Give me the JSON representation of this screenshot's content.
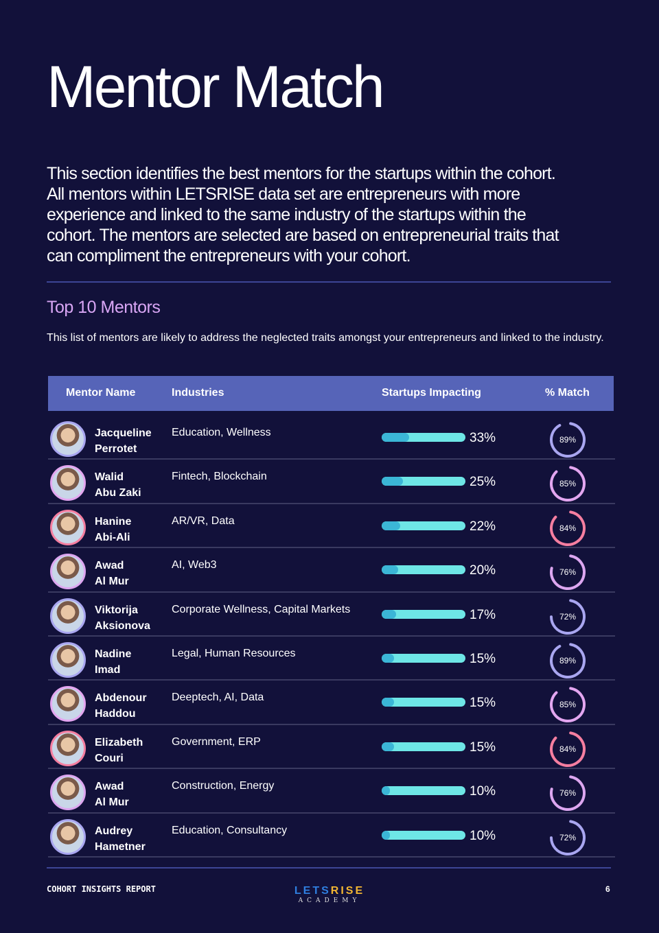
{
  "title": "Mentor Match",
  "intro": "This section identifies the best mentors for the startups within the cohort. All mentors within LETSRISE data set are entrepreneurs with more experience and linked to the same industry of the startups within the cohort. The mentors are selected are based on entrepreneurial traits that can compliment the entrepreneurs with your cohort.",
  "section": {
    "title": "Top 10 Mentors",
    "description": "This list of mentors are likely to address the neglected traits amongst your entrepreneurs and linked to the industry."
  },
  "table": {
    "headers": [
      "Mentor Name",
      "Industries",
      "Startups Impacting",
      "% Match"
    ],
    "rows": [
      {
        "first": "Jacqueline",
        "last": "Perrotet",
        "industries": "Education, Wellness",
        "impact": 33,
        "impact_label": "33%",
        "match": 89,
        "match_label": "89%",
        "ring_color": "#a9a6f0",
        "avatar_border": "#a9a6f0"
      },
      {
        "first": "Walid",
        "last": "Abu Zaki",
        "industries": "Fintech, Blockchain",
        "impact": 25,
        "impact_label": "25%",
        "match": 85,
        "match_label": "85%",
        "ring_color": "#e3a6f0",
        "avatar_border": "#e3a6f0"
      },
      {
        "first": "Hanine",
        "last": "Abi-Ali",
        "industries": "AR/VR, Data",
        "impact": 22,
        "impact_label": "22%",
        "match": 84,
        "match_label": "84%",
        "ring_color": "#f57ea0",
        "avatar_border": "#f57ea0"
      },
      {
        "first": "Awad",
        "last": "Al Mur",
        "industries": "AI, Web3",
        "impact": 20,
        "impact_label": "20%",
        "match": 76,
        "match_label": "76%",
        "ring_color": "#dca6f0",
        "avatar_border": "#dca6f0"
      },
      {
        "first": "Viktorija",
        "last": "Aksionova",
        "industries": "Corporate Wellness, Capital Markets",
        "impact": 17,
        "impact_label": "17%",
        "match": 72,
        "match_label": "72%",
        "ring_color": "#a9a6f0",
        "avatar_border": "#a9a6f0"
      },
      {
        "first": "Nadine",
        "last": "Imad",
        "industries": "Legal, Human Resources",
        "impact": 15,
        "impact_label": "15%",
        "match": 89,
        "match_label": "89%",
        "ring_color": "#a9a6f0",
        "avatar_border": "#a9a6f0"
      },
      {
        "first": "Abdenour",
        "last": "Haddou",
        "industries": "Deeptech, AI, Data",
        "impact": 15,
        "impact_label": "15%",
        "match": 85,
        "match_label": "85%",
        "ring_color": "#e3a6f0",
        "avatar_border": "#e3a6f0"
      },
      {
        "first": "Elizabeth",
        "last": "Couri",
        "industries": "Government, ERP",
        "impact": 15,
        "impact_label": "15%",
        "match": 84,
        "match_label": "84%",
        "ring_color": "#f57ea0",
        "avatar_border": "#f57ea0"
      },
      {
        "first": "Awad",
        "last": "Al Mur",
        "industries": "Construction, Energy",
        "impact": 10,
        "impact_label": "10%",
        "match": 76,
        "match_label": "76%",
        "ring_color": "#dca6f0",
        "avatar_border": "#dca6f0"
      },
      {
        "first": "Audrey",
        "last": "Hametner",
        "industries": "Education, Consultancy",
        "impact": 10,
        "impact_label": "10%",
        "match": 72,
        "match_label": "72%",
        "ring_color": "#a9a6f0",
        "avatar_border": "#a9a6f0"
      }
    ]
  },
  "footer": {
    "left": "COHORT INSIGHTS REPORT",
    "logo_part1": "LETS",
    "logo_part2": "RISE",
    "logo_sub": "ACADEMY",
    "logo_color1": "#2f7fe0",
    "logo_color2": "#f2b632",
    "page": "6"
  }
}
